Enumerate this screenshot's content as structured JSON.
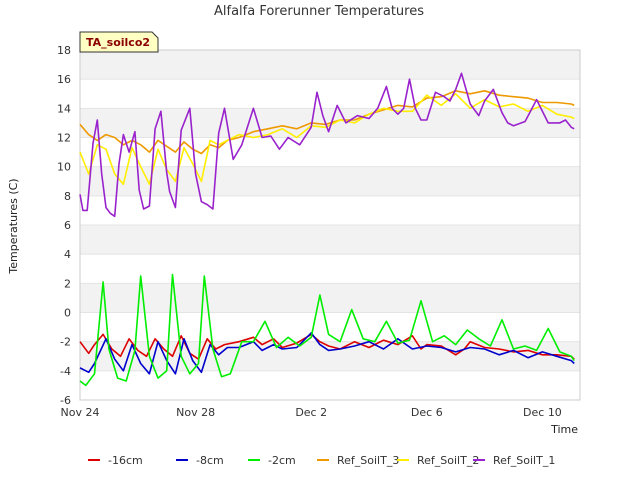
{
  "chart_data": {
    "type": "line",
    "title": "Alfalfa Forerunner Temperatures",
    "xlabel": "Time",
    "ylabel": "Temperatures (C)",
    "badge": "TA_soilco2",
    "ylim": [
      -6,
      18
    ],
    "yticks": [
      -6,
      -4,
      -2,
      0,
      2,
      4,
      6,
      8,
      10,
      12,
      14,
      16,
      18
    ],
    "xlim": [
      0,
      17.3
    ],
    "xticks": [
      {
        "value": 0,
        "label": "Nov 24"
      },
      {
        "value": 4,
        "label": "Nov 28"
      },
      {
        "value": 8,
        "label": "Dec 2"
      },
      {
        "value": 12,
        "label": "Dec 6"
      },
      {
        "value": 16,
        "label": "Dec 10"
      }
    ],
    "grid": "alternating horizontal bands",
    "legend_position": "bottom",
    "series": [
      {
        "name": "-16cm",
        "color": "#dd0000",
        "x": [
          0,
          0.3,
          0.5,
          0.8,
          1.1,
          1.4,
          1.7,
          2.0,
          2.3,
          2.6,
          2.9,
          3.2,
          3.5,
          3.8,
          4.1,
          4.4,
          4.7,
          5.0,
          5.5,
          6.0,
          6.3,
          6.7,
          7.0,
          7.5,
          8.0,
          8.3,
          8.6,
          9.0,
          9.5,
          10.0,
          10.5,
          11.0,
          11.5,
          11.8,
          12.0,
          12.5,
          13.0,
          13.3,
          13.5,
          14.0,
          14.5,
          15.0,
          15.5,
          16.0,
          16.5,
          17.0,
          17.1
        ],
        "y": [
          -2.0,
          -2.8,
          -2.2,
          -1.5,
          -2.5,
          -3.0,
          -1.8,
          -2.6,
          -3.0,
          -1.8,
          -2.5,
          -3.0,
          -1.6,
          -2.8,
          -3.2,
          -1.8,
          -2.5,
          -2.2,
          -2.0,
          -1.7,
          -2.2,
          -1.8,
          -2.4,
          -2.1,
          -1.5,
          -2.0,
          -2.3,
          -2.5,
          -2.0,
          -2.4,
          -1.9,
          -2.2,
          -1.6,
          -2.5,
          -2.2,
          -2.3,
          -2.9,
          -2.5,
          -2.0,
          -2.4,
          -2.5,
          -2.7,
          -2.6,
          -2.9,
          -2.9,
          -3.0,
          -3.2
        ]
      },
      {
        "name": "-8cm",
        "color": "#0000cc",
        "x": [
          0,
          0.3,
          0.5,
          0.9,
          1.2,
          1.5,
          1.8,
          2.1,
          2.4,
          2.7,
          3.0,
          3.3,
          3.6,
          3.9,
          4.2,
          4.5,
          4.8,
          5.1,
          5.5,
          6.0,
          6.3,
          6.7,
          7.0,
          7.5,
          8.0,
          8.3,
          8.6,
          9.0,
          9.5,
          10.0,
          10.5,
          11.0,
          11.5,
          12.0,
          12.5,
          13.0,
          13.5,
          14.0,
          14.5,
          15.0,
          15.5,
          16.0,
          16.5,
          17.0,
          17.1
        ],
        "y": [
          -3.8,
          -4.1,
          -3.5,
          -1.8,
          -3.2,
          -4.0,
          -2.2,
          -3.5,
          -4.2,
          -2.0,
          -3.3,
          -4.2,
          -1.8,
          -3.3,
          -4.1,
          -2.2,
          -2.9,
          -2.4,
          -2.4,
          -2.0,
          -2.6,
          -2.2,
          -2.5,
          -2.4,
          -1.4,
          -2.2,
          -2.6,
          -2.5,
          -2.3,
          -2.0,
          -2.5,
          -1.8,
          -2.5,
          -2.3,
          -2.4,
          -2.7,
          -2.4,
          -2.5,
          -2.9,
          -2.6,
          -3.1,
          -2.7,
          -3.0,
          -3.3,
          -3.5
        ]
      },
      {
        "name": "-2cm",
        "color": "#00ee00",
        "x": [
          0,
          0.2,
          0.5,
          0.8,
          1.0,
          1.3,
          1.6,
          1.9,
          2.1,
          2.4,
          2.7,
          3.0,
          3.2,
          3.5,
          3.8,
          4.1,
          4.3,
          4.6,
          4.9,
          5.2,
          5.6,
          6.0,
          6.4,
          6.8,
          7.2,
          7.6,
          8.0,
          8.3,
          8.6,
          9.0,
          9.4,
          9.8,
          10.2,
          10.6,
          11.0,
          11.4,
          11.8,
          12.2,
          12.6,
          13.0,
          13.4,
          13.8,
          14.2,
          14.6,
          15.0,
          15.4,
          15.8,
          16.2,
          16.6,
          17.0,
          17.1
        ],
        "y": [
          -4.7,
          -5.0,
          -4.2,
          2.1,
          -2.5,
          -4.5,
          -4.7,
          -2.6,
          2.5,
          -3.0,
          -4.5,
          -4.0,
          2.6,
          -3.0,
          -4.2,
          -3.5,
          2.5,
          -2.5,
          -4.4,
          -4.2,
          -2.0,
          -2.0,
          -0.6,
          -2.4,
          -1.7,
          -2.3,
          -1.7,
          1.2,
          -1.5,
          -2.0,
          0.2,
          -1.8,
          -2.0,
          -0.6,
          -2.1,
          -1.9,
          0.8,
          -2.0,
          -1.6,
          -2.2,
          -1.2,
          -1.8,
          -2.3,
          -0.5,
          -2.5,
          -2.3,
          -2.6,
          -1.1,
          -2.7,
          -3.0,
          -3.3
        ]
      },
      {
        "name": "Ref_SoilT_3",
        "color": "#ee9900",
        "x": [
          0,
          0.3,
          0.6,
          0.9,
          1.2,
          1.5,
          1.8,
          2.1,
          2.4,
          2.7,
          3.0,
          3.3,
          3.6,
          3.9,
          4.2,
          4.5,
          4.8,
          5.1,
          5.5,
          6.0,
          6.5,
          7.0,
          7.5,
          8.0,
          8.5,
          9.0,
          9.5,
          10.0,
          10.5,
          11.0,
          11.5,
          12.0,
          12.5,
          13.0,
          13.5,
          14.0,
          14.5,
          15.0,
          15.5,
          16.0,
          16.5,
          17.0,
          17.1
        ],
        "y": [
          12.9,
          12.2,
          11.8,
          12.2,
          12.0,
          11.5,
          11.8,
          11.5,
          11.0,
          11.8,
          11.4,
          11.0,
          11.7,
          11.2,
          10.9,
          11.5,
          11.3,
          11.8,
          12.0,
          12.4,
          12.6,
          12.8,
          12.6,
          13.0,
          12.9,
          13.2,
          13.2,
          13.6,
          13.9,
          14.2,
          14.1,
          14.7,
          14.8,
          15.2,
          15.0,
          15.2,
          14.9,
          14.8,
          14.7,
          14.4,
          14.4,
          14.3,
          14.2
        ]
      },
      {
        "name": "Ref_SoilT_2",
        "color": "#ffee00",
        "x": [
          0,
          0.3,
          0.6,
          0.9,
          1.2,
          1.5,
          1.8,
          2.1,
          2.4,
          2.7,
          3.0,
          3.3,
          3.6,
          3.9,
          4.2,
          4.5,
          4.8,
          5.1,
          5.5,
          6.0,
          6.5,
          7.0,
          7.5,
          8.0,
          8.5,
          9.0,
          9.5,
          10.0,
          10.5,
          11.0,
          11.5,
          12.0,
          12.5,
          13.0,
          13.5,
          14.0,
          14.5,
          15.0,
          15.5,
          16.0,
          16.5,
          17.0,
          17.1
        ],
        "y": [
          11.0,
          9.5,
          11.5,
          11.2,
          9.5,
          8.8,
          11.3,
          10.0,
          8.8,
          11.2,
          9.8,
          9.0,
          11.3,
          10.2,
          9.0,
          11.8,
          11.5,
          11.8,
          12.2,
          12.0,
          12.2,
          12.6,
          12.0,
          12.8,
          12.7,
          13.2,
          13.0,
          13.6,
          14.0,
          13.8,
          13.8,
          14.9,
          14.2,
          15.0,
          14.0,
          14.6,
          14.1,
          14.3,
          13.8,
          14.2,
          13.6,
          13.4,
          13.3
        ]
      },
      {
        "name": "Ref_SoilT_1",
        "color": "#9922cc",
        "x": [
          0,
          0.1,
          0.25,
          0.45,
          0.6,
          0.75,
          0.9,
          1.05,
          1.2,
          1.35,
          1.5,
          1.7,
          1.9,
          2.05,
          2.2,
          2.4,
          2.6,
          2.8,
          3.0,
          3.1,
          3.3,
          3.5,
          3.8,
          4.0,
          4.2,
          4.4,
          4.6,
          4.8,
          5.0,
          5.3,
          5.6,
          6.0,
          6.3,
          6.6,
          6.9,
          7.2,
          7.6,
          8.0,
          8.2,
          8.4,
          8.6,
          8.9,
          9.2,
          9.6,
          10.0,
          10.3,
          10.6,
          10.8,
          11.0,
          11.2,
          11.4,
          11.6,
          11.8,
          12.0,
          12.3,
          12.6,
          12.8,
          13.0,
          13.2,
          13.5,
          13.8,
          14.0,
          14.3,
          14.6,
          14.8,
          15.0,
          15.4,
          15.8,
          16.2,
          16.6,
          16.8,
          17.0,
          17.1
        ],
        "y": [
          8.1,
          7.0,
          7.0,
          11.6,
          13.2,
          9.5,
          7.2,
          6.8,
          6.6,
          10.2,
          12.2,
          11.0,
          12.4,
          8.4,
          7.1,
          7.3,
          12.6,
          13.8,
          9.6,
          8.3,
          7.2,
          12.5,
          14.0,
          9.5,
          7.6,
          7.4,
          7.1,
          12.3,
          14.0,
          10.5,
          11.5,
          14.0,
          12.0,
          12.1,
          11.2,
          12.0,
          11.5,
          12.7,
          15.1,
          13.5,
          12.4,
          14.2,
          13.0,
          13.5,
          13.3,
          14.0,
          15.5,
          14.0,
          13.6,
          14.0,
          16.0,
          14.0,
          13.2,
          13.2,
          15.1,
          14.8,
          14.5,
          15.3,
          16.4,
          14.3,
          13.5,
          14.5,
          15.3,
          13.7,
          13.0,
          12.8,
          13.1,
          14.6,
          13.0,
          13.0,
          13.2,
          12.7,
          12.6
        ]
      }
    ]
  }
}
